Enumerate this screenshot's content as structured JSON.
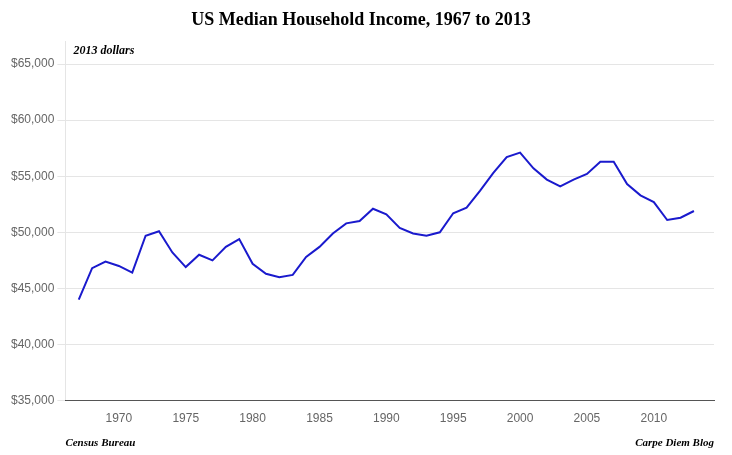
{
  "chart_data": {
    "type": "line",
    "title": "US Median Household Income, 1967 to 2013",
    "annotations": [
      "2013 dollars",
      "Census Bureau",
      "Carpe Diem Blog"
    ],
    "color": "#1a1acd",
    "x": [
      1967,
      1968,
      1969,
      1970,
      1971,
      1972,
      1973,
      1974,
      1975,
      1976,
      1977,
      1978,
      1979,
      1980,
      1981,
      1982,
      1983,
      1984,
      1985,
      1986,
      1987,
      1988,
      1989,
      1990,
      1991,
      1992,
      1993,
      1994,
      1995,
      1996,
      1997,
      1998,
      1999,
      2000,
      2001,
      2002,
      2003,
      2004,
      2005,
      2006,
      2007,
      2008,
      2009,
      2010,
      2011,
      2012,
      2013
    ],
    "values": [
      44000,
      46800,
      47400,
      47000,
      46400,
      49700,
      50100,
      48200,
      46900,
      48000,
      47500,
      48700,
      49400,
      47200,
      46300,
      46000,
      46200,
      47800,
      48700,
      49900,
      50800,
      51000,
      52100,
      51600,
      50400,
      49900,
      49700,
      50000,
      51700,
      52200,
      53700,
      55300,
      56700,
      57100,
      55700,
      54700,
      54100,
      54700,
      55200,
      56300,
      56300,
      54300,
      53300,
      52700,
      51100,
      51300,
      51900
    ],
    "xlim": [
      1966,
      2014.5
    ],
    "xticks": [
      1970,
      1975,
      1980,
      1985,
      1990,
      1995,
      2000,
      2005,
      2010
    ],
    "ylim": [
      35000,
      67000
    ],
    "yticks": [
      {
        "value": 35000,
        "label": "$35,000"
      },
      {
        "value": 40000,
        "label": "$40,000"
      },
      {
        "value": 45000,
        "label": "$45,000"
      },
      {
        "value": 50000,
        "label": "$50,000"
      },
      {
        "value": 55000,
        "label": "$55,000"
      },
      {
        "value": 60000,
        "label": "$60,000"
      },
      {
        "value": 65000,
        "label": "$65,000"
      }
    ],
    "grid": true
  }
}
